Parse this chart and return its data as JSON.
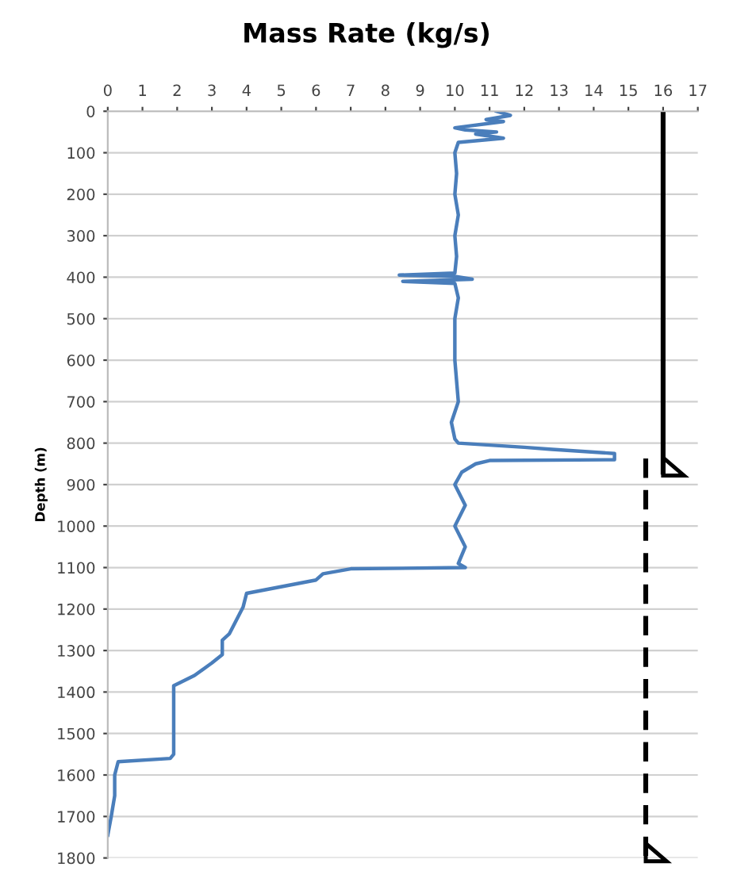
{
  "chart_data": {
    "type": "line",
    "title": "Mass Rate (kg/s)",
    "ylabel": "Depth (m)",
    "orientation": "horizontal",
    "xlim": [
      0,
      17
    ],
    "xticks": [
      0,
      1,
      2,
      3,
      4,
      5,
      6,
      7,
      8,
      9,
      10,
      11,
      12,
      13,
      14,
      15,
      16,
      17
    ],
    "ylim": [
      1800,
      0
    ],
    "yticks": [
      0,
      100,
      200,
      300,
      400,
      500,
      600,
      700,
      800,
      900,
      1000,
      1100,
      1200,
      1300,
      1400,
      1500,
      1600,
      1700,
      1800
    ],
    "grid": "y",
    "legend": false,
    "series": [
      {
        "color": "#4a7ebb",
        "line_style": "solid",
        "x": [
          0,
          10,
          20,
          25,
          40,
          45,
          50,
          55,
          65,
          75,
          100,
          150,
          200,
          250,
          300,
          350,
          390,
          395,
          398,
          405,
          410,
          415,
          450,
          500,
          600,
          700,
          750,
          790,
          800,
          810,
          815,
          825,
          840,
          842,
          850,
          870,
          900,
          950,
          1000,
          1050,
          1090,
          1100,
          1103,
          1115,
          1130,
          1162,
          1195,
          1260,
          1275,
          1310,
          1330,
          1360,
          1385,
          1400,
          1550,
          1560,
          1568,
          1600,
          1650,
          1700,
          1745
        ],
        "values": [
          11.2,
          11.6,
          10.9,
          11.4,
          10.0,
          10.3,
          11.2,
          10.6,
          11.4,
          10.1,
          10.0,
          10.05,
          10.0,
          10.1,
          10.0,
          10.05,
          10.0,
          8.4,
          10.0,
          10.5,
          8.5,
          10.0,
          10.1,
          10.0,
          10.0,
          10.1,
          9.9,
          10.0,
          10.1,
          12.0,
          12.8,
          14.6,
          14.6,
          11.0,
          10.6,
          10.2,
          10.0,
          10.3,
          10.0,
          10.3,
          10.1,
          10.3,
          7.0,
          6.2,
          6.0,
          4.0,
          3.9,
          3.5,
          3.3,
          3.3,
          3.0,
          2.5,
          1.9,
          1.9,
          1.9,
          1.8,
          0.3,
          0.2,
          0.2,
          0.1,
          0.0
        ]
      },
      {
        "color": "#000000",
        "line_style": "solid",
        "x": [
          0,
          870
        ],
        "values": [
          16,
          16
        ]
      },
      {
        "color": "#000000",
        "line_style": "dashed",
        "x": [
          837,
          1800
        ],
        "values": [
          15.5,
          15.5
        ]
      }
    ]
  }
}
